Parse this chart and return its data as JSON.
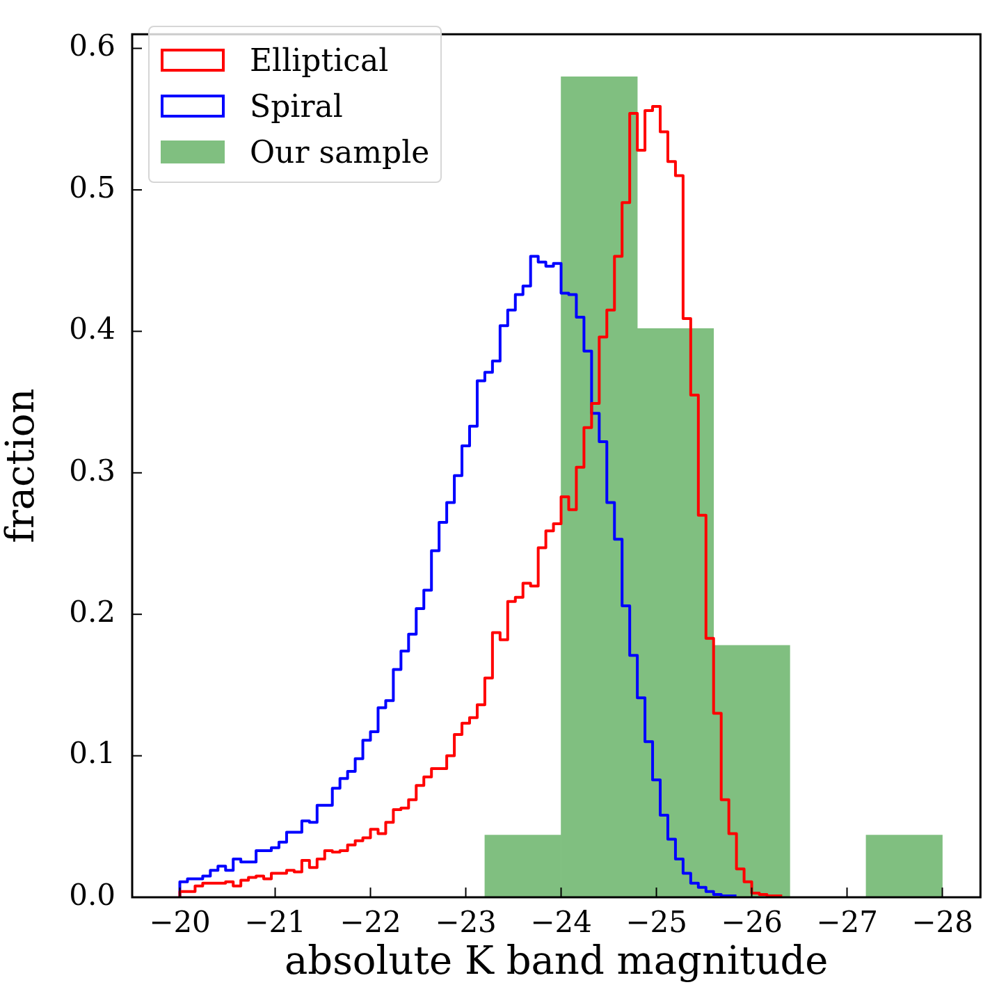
{
  "chart_data": {
    "type": "histogram",
    "xlabel": "absolute K band magnitude",
    "ylabel": "fraction",
    "xlim": [
      -19.5,
      -28.4
    ],
    "xticks": [
      {
        "value": -20,
        "label": "−20"
      },
      {
        "value": -21,
        "label": "−21"
      },
      {
        "value": -22,
        "label": "−22"
      },
      {
        "value": -23,
        "label": "−23"
      },
      {
        "value": -24,
        "label": "−24"
      },
      {
        "value": -25,
        "label": "−25"
      },
      {
        "value": -26,
        "label": "−26"
      },
      {
        "value": -27,
        "label": "−27"
      },
      {
        "value": -28,
        "label": "−28"
      }
    ],
    "ylim": [
      0,
      0.61
    ],
    "yticks": [
      {
        "value": 0,
        "label": "0.0"
      },
      0.1,
      0.2,
      0.3,
      0.4,
      0.5,
      0.6
    ],
    "legend": "top left",
    "bins": [
      -23.2,
      -24,
      -24.8,
      -25.6,
      -26.4,
      -27.2,
      -28
    ],
    "series": [
      {
        "name": "Elliptical",
        "type": "step",
        "color": "#ff0000",
        "x": [
          -20,
          -20,
          -20.08,
          -20.16,
          -20.24,
          -20.32,
          -20.4,
          -20.48,
          -20.56,
          -20.64,
          -20.72,
          -20.8,
          -20.88,
          -20.96,
          -21.04,
          -21.12,
          -21.2,
          -21.28,
          -21.36,
          -21.44,
          -21.52,
          -21.6,
          -21.68,
          -21.76,
          -21.84,
          -21.92,
          -22,
          -22.08,
          -22.16,
          -22.24,
          -22.32,
          -22.4,
          -22.48,
          -22.56,
          -22.64,
          -22.72,
          -22.8,
          -22.88,
          -22.96,
          -23.04,
          -23.12,
          -23.2,
          -23.28,
          -23.36,
          -23.44,
          -23.52,
          -23.6,
          -23.68,
          -23.76,
          -23.84,
          -23.92,
          -24,
          -24.08,
          -24.16,
          -24.24,
          -24.32,
          -24.4,
          -24.48,
          -24.56,
          -24.64,
          -24.72,
          -24.8,
          -24.88,
          -24.96,
          -25.04,
          -25.12,
          -25.2,
          -25.28,
          -25.36,
          -25.44,
          -25.52,
          -25.6,
          -25.68,
          -25.76,
          -25.84,
          -25.92,
          -26,
          -26.08,
          -26.16,
          -26.24,
          -26.32
        ],
        "values": [
          0,
          0.004,
          0.004,
          0.008,
          0.01,
          0.01,
          0.01,
          0.011,
          0.008,
          0.012,
          0.014,
          0.015,
          0.013,
          0.017,
          0.017,
          0.019,
          0.018,
          0.026,
          0.021,
          0.027,
          0.033,
          0.032,
          0.033,
          0.037,
          0.04,
          0.042,
          0.048,
          0.045,
          0.053,
          0.062,
          0.063,
          0.069,
          0.079,
          0.085,
          0.091,
          0.091,
          0.1,
          0.115,
          0.123,
          0.127,
          0.136,
          0.155,
          0.187,
          0.182,
          0.209,
          0.212,
          0.222,
          0.22,
          0.247,
          0.259,
          0.264,
          0.283,
          0.274,
          0.304,
          0.332,
          0.349,
          0.396,
          0.415,
          0.453,
          0.491,
          0.554,
          0.528,
          0.556,
          0.559,
          0.541,
          0.52,
          0.51,
          0.409,
          0.355,
          0.27,
          0.183,
          0.13,
          0.069,
          0.045,
          0.02,
          0.011,
          0.003,
          0.002,
          0.001,
          0.001,
          0.001
        ]
      },
      {
        "name": "Spiral",
        "type": "step",
        "color": "#0000ff",
        "x": [
          -20,
          -20,
          -20.08,
          -20.16,
          -20.24,
          -20.32,
          -20.4,
          -20.48,
          -20.56,
          -20.64,
          -20.72,
          -20.8,
          -20.88,
          -20.96,
          -21.04,
          -21.12,
          -21.2,
          -21.28,
          -21.36,
          -21.44,
          -21.52,
          -21.6,
          -21.68,
          -21.76,
          -21.84,
          -21.92,
          -22,
          -22.08,
          -22.16,
          -22.24,
          -22.32,
          -22.4,
          -22.48,
          -22.56,
          -22.64,
          -22.72,
          -22.8,
          -22.88,
          -22.96,
          -23.04,
          -23.12,
          -23.2,
          -23.28,
          -23.36,
          -23.44,
          -23.52,
          -23.6,
          -23.68,
          -23.76,
          -23.84,
          -23.92,
          -24,
          -24.08,
          -24.16,
          -24.24,
          -24.32,
          -24.4,
          -24.48,
          -24.56,
          -24.64,
          -24.72,
          -24.8,
          -24.88,
          -24.96,
          -25.04,
          -25.12,
          -25.2,
          -25.28,
          -25.36,
          -25.44,
          -25.52,
          -25.6,
          -25.68,
          -25.76,
          -25.84
        ],
        "values": [
          0,
          0.011,
          0.013,
          0.013,
          0.015,
          0.019,
          0.022,
          0.019,
          0.027,
          0.025,
          0.025,
          0.033,
          0.033,
          0.035,
          0.039,
          0.046,
          0.046,
          0.054,
          0.053,
          0.065,
          0.065,
          0.077,
          0.084,
          0.089,
          0.098,
          0.111,
          0.117,
          0.134,
          0.139,
          0.161,
          0.174,
          0.186,
          0.204,
          0.217,
          0.245,
          0.265,
          0.279,
          0.298,
          0.319,
          0.333,
          0.365,
          0.371,
          0.379,
          0.404,
          0.415,
          0.426,
          0.432,
          0.453,
          0.449,
          0.446,
          0.448,
          0.427,
          0.426,
          0.41,
          0.386,
          0.342,
          0.322,
          0.279,
          0.253,
          0.206,
          0.171,
          0.141,
          0.11,
          0.083,
          0.058,
          0.041,
          0.027,
          0.017,
          0.01,
          0.007,
          0.004,
          0.002,
          0.001,
          0.001,
          0.001
        ]
      },
      {
        "name": "Our sample",
        "color": "#80bf80",
        "values": [
          0.044,
          0.58,
          0.402,
          0.178,
          0,
          0.044
        ]
      }
    ]
  }
}
